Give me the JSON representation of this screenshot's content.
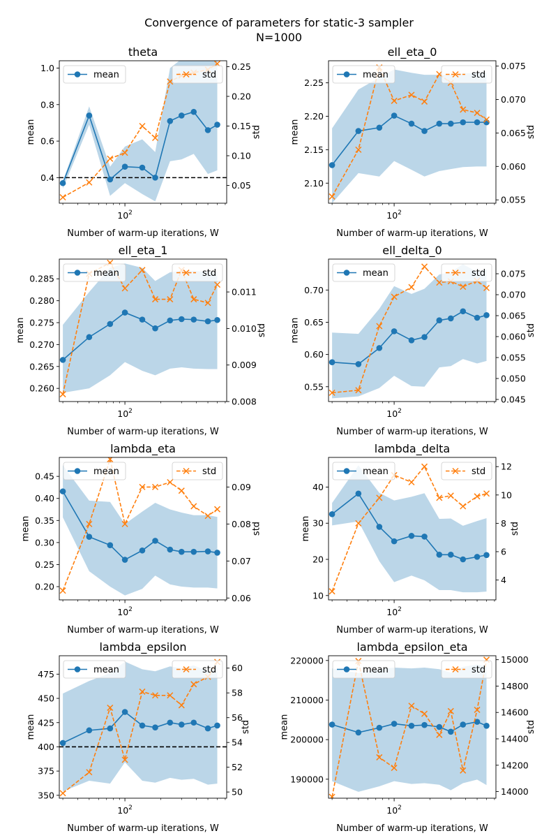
{
  "figure": {
    "title_line1": "Convergence of parameters for static-3 sampler",
    "title_line2": "N=1000"
  },
  "colors": {
    "mean": "#1f77b4",
    "std": "#ff7f0e",
    "band": "#1f77b4",
    "refline": "#000000"
  },
  "chart_data": [
    {
      "type": "line",
      "title": "theta",
      "xlabel": "Number of warm-up iterations, W",
      "ylabel": "mean",
      "y2label": "std",
      "xscale": "log",
      "xlim": [
        28,
        720
      ],
      "x": [
        30,
        50,
        75,
        100,
        140,
        180,
        240,
        300,
        380,
        500,
        600
      ],
      "xticks": [
        {
          "value": 100,
          "label": "10^2"
        }
      ],
      "ylim": [
        0.26,
        1.04
      ],
      "yticks": [
        0.4,
        0.6,
        0.8,
        1.0
      ],
      "ytick_labels": [
        "0.4",
        "0.6",
        "0.8",
        "1.0"
      ],
      "y2lim": [
        0.02,
        0.26
      ],
      "y2ticks": [
        0.05,
        0.1,
        0.15,
        0.2,
        0.25
      ],
      "y2tick_labels": [
        "0.05",
        "0.10",
        "0.15",
        "0.20",
        "0.25"
      ],
      "hline": 0.4,
      "legend": {
        "mean": "mean",
        "std": "std"
      },
      "series": [
        {
          "name": "mean",
          "axis": "left",
          "marker": "o",
          "linestyle": "solid",
          "values": [
            0.37,
            0.74,
            0.39,
            0.46,
            0.455,
            0.4,
            0.71,
            0.74,
            0.76,
            0.66,
            0.69
          ]
        },
        {
          "name": "std",
          "axis": "right",
          "marker": "x",
          "linestyle": "dashed",
          "values": [
            0.03,
            0.055,
            0.095,
            0.105,
            0.15,
            0.13,
            0.225,
            0.235,
            0.24,
            0.245,
            0.255
          ]
        }
      ],
      "band": {
        "lower": [
          0.34,
          0.69,
          0.3,
          0.37,
          0.31,
          0.27,
          0.49,
          0.5,
          0.53,
          0.42,
          0.44
        ],
        "upper": [
          0.38,
          0.79,
          0.46,
          0.57,
          0.61,
          0.54,
          1.0,
          1.05,
          1.05,
          1.05,
          1.05
        ]
      }
    },
    {
      "type": "line",
      "title": "ell_eta_0",
      "xlabel": "Number of warm-up iterations, W",
      "ylabel": "mean",
      "y2label": "std",
      "xscale": "log",
      "xlim": [
        28,
        720
      ],
      "x": [
        30,
        50,
        75,
        100,
        140,
        180,
        240,
        300,
        380,
        500,
        600
      ],
      "xticks": [
        {
          "value": 100,
          "label": "10^2"
        }
      ],
      "ylim": [
        2.07,
        2.283
      ],
      "yticks": [
        2.1,
        2.15,
        2.2,
        2.25
      ],
      "ytick_labels": [
        "2.10",
        "2.15",
        "2.20",
        "2.25"
      ],
      "y2lim": [
        0.0545,
        0.0758
      ],
      "y2ticks": [
        0.055,
        0.06,
        0.065,
        0.07,
        0.075
      ],
      "y2tick_labels": [
        "0.055",
        "0.060",
        "0.065",
        "0.070",
        "0.075"
      ],
      "hline": null,
      "legend": {
        "mean": "mean",
        "std": "std"
      },
      "series": [
        {
          "name": "mean",
          "axis": "left",
          "marker": "o",
          "linestyle": "solid",
          "values": [
            2.127,
            2.178,
            2.183,
            2.201,
            2.189,
            2.178,
            2.189,
            2.189,
            2.191,
            2.191,
            2.191
          ]
        },
        {
          "name": "std",
          "axis": "right",
          "marker": "x",
          "linestyle": "dashed",
          "values": [
            0.0555,
            0.0625,
            0.0748,
            0.0698,
            0.0707,
            0.0697,
            0.0738,
            0.0725,
            0.0685,
            0.068,
            0.067
          ]
        }
      ],
      "band": {
        "lower": [
          2.07,
          2.115,
          2.11,
          2.133,
          2.12,
          2.11,
          2.118,
          2.121,
          2.124,
          2.125,
          2.125
        ],
        "upper": [
          2.182,
          2.24,
          2.258,
          2.27,
          2.265,
          2.262,
          2.262,
          2.262,
          2.264,
          2.265,
          2.265
        ]
      }
    },
    {
      "type": "line",
      "title": "ell_eta_1",
      "xlabel": "Number of warm-up iterations, W",
      "ylabel": "mean",
      "y2label": "std",
      "xscale": "log",
      "xlim": [
        28,
        720
      ],
      "x": [
        30,
        50,
        75,
        100,
        140,
        180,
        240,
        300,
        380,
        500,
        600
      ],
      "xticks": [
        {
          "value": 100,
          "label": "10^2"
        }
      ],
      "ylim": [
        0.257,
        0.2895
      ],
      "yticks": [
        0.26,
        0.265,
        0.27,
        0.275,
        0.28,
        0.285
      ],
      "ytick_labels": [
        "0.260",
        "0.265",
        "0.270",
        "0.275",
        "0.280",
        "0.285"
      ],
      "y2lim": [
        0.008,
        0.0119
      ],
      "y2ticks": [
        0.008,
        0.009,
        0.01,
        0.011
      ],
      "y2tick_labels": [
        "0.008",
        "0.009",
        "0.010",
        "0.011"
      ],
      "hline": null,
      "legend": {
        "mean": "mean",
        "std": "std"
      },
      "series": [
        {
          "name": "mean",
          "axis": "left",
          "marker": "o",
          "linestyle": "solid",
          "values": [
            0.2665,
            0.2717,
            0.2747,
            0.2773,
            0.2757,
            0.2737,
            0.2755,
            0.2758,
            0.2757,
            0.2753,
            0.2756
          ]
        },
        {
          "name": "std",
          "axis": "right",
          "marker": "x",
          "linestyle": "dashed",
          "values": [
            0.0082,
            0.0115,
            0.0118,
            0.0111,
            0.0116,
            0.0108,
            0.0108,
            0.0116,
            0.0108,
            0.0107,
            0.0112
          ]
        }
      ],
      "band": {
        "lower": [
          0.259,
          0.26,
          0.263,
          0.266,
          0.264,
          0.263,
          0.2645,
          0.2648,
          0.2645,
          0.2644,
          0.2644
        ],
        "upper": [
          0.2745,
          0.282,
          0.2875,
          0.2885,
          0.2875,
          0.2845,
          0.2865,
          0.2868,
          0.2868,
          0.2866,
          0.2866
        ]
      }
    },
    {
      "type": "line",
      "title": "ell_delta_0",
      "xlabel": "Number of warm-up iterations, W",
      "ylabel": "mean",
      "y2label": "std",
      "xscale": "log",
      "xlim": [
        28,
        720
      ],
      "x": [
        30,
        50,
        75,
        100,
        140,
        180,
        240,
        300,
        380,
        500,
        600
      ],
      "xticks": [
        {
          "value": 100,
          "label": "10^2"
        }
      ],
      "ylim": [
        0.527,
        0.748
      ],
      "yticks": [
        0.55,
        0.6,
        0.65,
        0.7
      ],
      "ytick_labels": [
        "0.55",
        "0.60",
        "0.65",
        "0.70"
      ],
      "y2lim": [
        0.0445,
        0.0785
      ],
      "y2ticks": [
        0.045,
        0.05,
        0.055,
        0.06,
        0.065,
        0.07,
        0.075
      ],
      "y2tick_labels": [
        "0.045",
        "0.050",
        "0.055",
        "0.060",
        "0.065",
        "0.070",
        "0.075"
      ],
      "hline": null,
      "legend": {
        "mean": "mean",
        "std": "std"
      },
      "series": [
        {
          "name": "mean",
          "axis": "left",
          "marker": "o",
          "linestyle": "solid",
          "values": [
            0.588,
            0.585,
            0.61,
            0.636,
            0.622,
            0.627,
            0.653,
            0.656,
            0.667,
            0.657,
            0.661
          ]
        },
        {
          "name": "std",
          "axis": "right",
          "marker": "x",
          "linestyle": "dashed",
          "values": [
            0.0466,
            0.0472,
            0.0625,
            0.0695,
            0.0718,
            0.0767,
            0.0729,
            0.0732,
            0.0719,
            0.0733,
            0.0716
          ]
        }
      ],
      "band": {
        "lower": [
          0.532,
          0.535,
          0.548,
          0.567,
          0.551,
          0.55,
          0.58,
          0.582,
          0.593,
          0.586,
          0.59
        ],
        "upper": [
          0.634,
          0.632,
          0.671,
          0.706,
          0.694,
          0.702,
          0.724,
          0.728,
          0.74,
          0.728,
          0.732
        ]
      }
    },
    {
      "type": "line",
      "title": "lambda_eta",
      "xlabel": "Number of warm-up iterations, W",
      "ylabel": "mean",
      "y2label": "std",
      "xscale": "log",
      "xlim": [
        28,
        720
      ],
      "x": [
        30,
        50,
        75,
        100,
        140,
        180,
        240,
        300,
        380,
        500,
        600
      ],
      "xticks": [
        {
          "value": 100,
          "label": "10^2"
        }
      ],
      "ylim": [
        0.17,
        0.493
      ],
      "yticks": [
        0.2,
        0.25,
        0.3,
        0.35,
        0.4,
        0.45
      ],
      "ytick_labels": [
        "0.20",
        "0.25",
        "0.30",
        "0.35",
        "0.40",
        "0.45"
      ],
      "y2lim": [
        0.0595,
        0.098
      ],
      "y2ticks": [
        0.06,
        0.07,
        0.08,
        0.09
      ],
      "y2tick_labels": [
        "0.06",
        "0.07",
        "0.08",
        "0.09"
      ],
      "hline": null,
      "legend": {
        "mean": "mean",
        "std": "std"
      },
      "series": [
        {
          "name": "mean",
          "axis": "left",
          "marker": "o",
          "linestyle": "solid",
          "values": [
            0.416,
            0.313,
            0.294,
            0.261,
            0.282,
            0.304,
            0.284,
            0.279,
            0.279,
            0.28,
            0.277
          ]
        },
        {
          "name": "std",
          "axis": "right",
          "marker": "x",
          "linestyle": "dashed",
          "values": [
            0.062,
            0.08,
            0.0975,
            0.08,
            0.09,
            0.09,
            0.0913,
            0.089,
            0.0848,
            0.0822,
            0.084
          ]
        }
      ],
      "band": {
        "lower": [
          0.357,
          0.235,
          0.2,
          0.18,
          0.195,
          0.225,
          0.205,
          0.2,
          0.198,
          0.198,
          0.196
        ],
        "upper": [
          0.475,
          0.395,
          0.392,
          0.342,
          0.37,
          0.39,
          0.375,
          0.368,
          0.362,
          0.362,
          0.358
        ]
      }
    },
    {
      "type": "line",
      "title": "lambda_delta",
      "xlabel": "Number of warm-up iterations, W",
      "ylabel": "mean",
      "y2label": "std",
      "xscale": "log",
      "xlim": [
        28,
        720
      ],
      "x": [
        30,
        50,
        75,
        100,
        140,
        180,
        240,
        300,
        380,
        500,
        600
      ],
      "xticks": [
        {
          "value": 100,
          "label": "10^2"
        }
      ],
      "ylim": [
        8.8,
        48.2
      ],
      "yticks": [
        10,
        20,
        30,
        40
      ],
      "ytick_labels": [
        "10",
        "20",
        "30",
        "40"
      ],
      "y2lim": [
        2.6,
        12.65
      ],
      "y2ticks": [
        4,
        6,
        8,
        10,
        12
      ],
      "y2tick_labels": [
        "4",
        "6",
        "8",
        "10",
        "12"
      ],
      "hline": null,
      "legend": {
        "mean": "mean",
        "std": "std"
      },
      "series": [
        {
          "name": "mean",
          "axis": "left",
          "marker": "o",
          "linestyle": "solid",
          "values": [
            32.5,
            38.2,
            29.0,
            25.0,
            26.5,
            26.3,
            21.3,
            21.3,
            20.0,
            20.7,
            21.2
          ]
        },
        {
          "name": "std",
          "axis": "right",
          "marker": "x",
          "linestyle": "dashed",
          "values": [
            3.2,
            8.0,
            9.8,
            11.4,
            10.9,
            12.0,
            9.8,
            9.95,
            9.2,
            9.9,
            10.1
          ]
        }
      ],
      "band": {
        "lower": [
          29.4,
          30.5,
          19.5,
          13.7,
          15.5,
          14.2,
          11.5,
          11.5,
          10.9,
          10.9,
          11.1
        ],
        "upper": [
          35.6,
          46.0,
          38.4,
          36.3,
          37.3,
          38.3,
          31.2,
          31.3,
          29.3,
          30.6,
          31.4
        ]
      }
    },
    {
      "type": "line",
      "title": "lambda_epsilon",
      "xlabel": "Number of warm-up iterations, W",
      "ylabel": "mean",
      "y2label": "std",
      "xscale": "log",
      "xlim": [
        28,
        720
      ],
      "x": [
        30,
        50,
        75,
        100,
        140,
        180,
        240,
        300,
        380,
        500,
        600
      ],
      "xticks": [
        {
          "value": 100,
          "label": "10^2"
        }
      ],
      "ylim": [
        347,
        494
      ],
      "yticks": [
        350,
        375,
        400,
        425,
        450,
        475
      ],
      "ytick_labels": [
        "350",
        "375",
        "400",
        "425",
        "450",
        "475"
      ],
      "y2lim": [
        49.5,
        61.0
      ],
      "y2ticks": [
        50,
        52,
        54,
        56,
        58,
        60
      ],
      "y2tick_labels": [
        "50",
        "52",
        "54",
        "56",
        "58",
        "60"
      ],
      "hline": 400,
      "legend": {
        "mean": "mean",
        "std": "std"
      },
      "series": [
        {
          "name": "mean",
          "axis": "left",
          "marker": "o",
          "linestyle": "solid",
          "values": [
            404,
            417,
            419,
            436,
            422,
            420,
            425,
            423,
            425,
            419,
            422
          ]
        },
        {
          "name": "std",
          "axis": "right",
          "marker": "x",
          "linestyle": "dashed",
          "values": [
            49.9,
            51.6,
            56.8,
            52.6,
            58.1,
            57.8,
            57.8,
            57.0,
            58.7,
            59.3,
            60.5
          ]
        }
      ],
      "band": {
        "lower": [
          354,
          365,
          362,
          384,
          365,
          363,
          368,
          366,
          367,
          361,
          362
        ],
        "upper": [
          455,
          468,
          476,
          488,
          480,
          478,
          483,
          481,
          484,
          478,
          482
        ]
      }
    },
    {
      "type": "line",
      "title": "lambda_epsilon_eta",
      "xlabel": "Number of warm-up iterations, W",
      "ylabel": "mean",
      "y2label": "std",
      "xscale": "log",
      "xlim": [
        28,
        720
      ],
      "x": [
        30,
        50,
        75,
        100,
        140,
        180,
        240,
        300,
        380,
        500,
        600
      ],
      "xticks": [
        {
          "value": 100,
          "label": "10^2"
        }
      ],
      "ylim": [
        185200,
        221200
      ],
      "yticks": [
        190000,
        200000,
        210000,
        220000
      ],
      "ytick_labels": [
        "190000",
        "200000",
        "210000",
        "220000"
      ],
      "y2lim": [
        13950,
        15030
      ],
      "y2ticks": [
        14000,
        14200,
        14400,
        14600,
        14800,
        15000
      ],
      "y2tick_labels": [
        "14000",
        "14200",
        "14400",
        "14600",
        "14800",
        "15000"
      ],
      "hline": null,
      "legend": {
        "mean": "mean",
        "std": "std"
      },
      "series": [
        {
          "name": "mean",
          "axis": "left",
          "marker": "o",
          "linestyle": "solid",
          "values": [
            203800,
            201800,
            203000,
            204000,
            203500,
            203700,
            203200,
            202000,
            203800,
            204500,
            203500
          ]
        },
        {
          "name": "std",
          "axis": "right",
          "marker": "x",
          "linestyle": "dashed",
          "values": [
            13960,
            14990,
            14260,
            14180,
            14650,
            14590,
            14430,
            14610,
            14160,
            14620,
            15000
          ]
        }
      ],
      "band": {
        "lower": [
          189500,
          186800,
          188200,
          189500,
          188800,
          189000,
          188600,
          187200,
          189000,
          189900,
          188500
        ],
        "upper": [
          218000,
          216800,
          217800,
          218200,
          218000,
          218200,
          217800,
          216900,
          218400,
          219000,
          218500
        ]
      }
    }
  ]
}
